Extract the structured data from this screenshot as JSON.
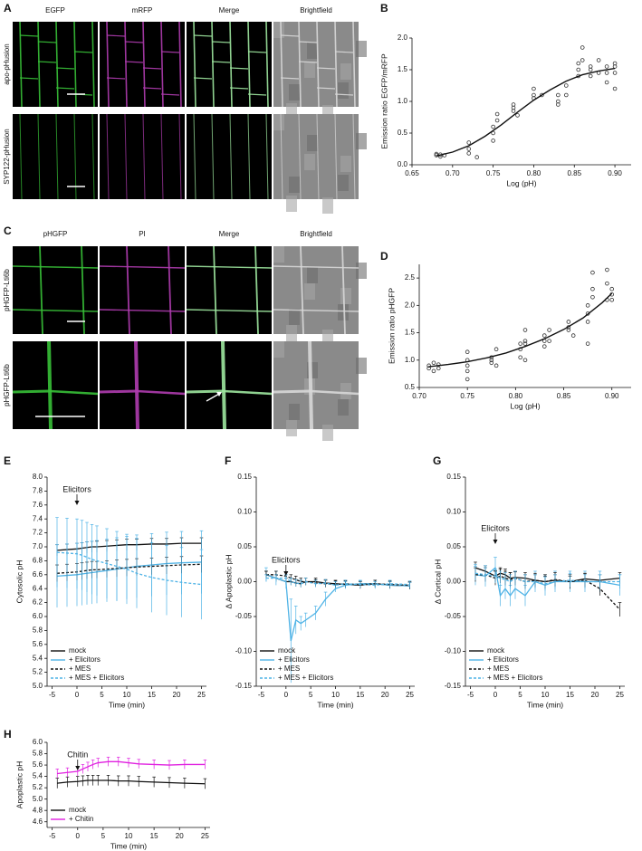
{
  "images": [
    {
      "panel": "A",
      "columns": [
        "EGFP",
        "mRFP",
        "Merge",
        "Brightfield"
      ],
      "rows": [
        "apo-pHusion",
        "SYP122-pHusion"
      ]
    },
    {
      "panel": "C",
      "columns": [
        "pHGFP",
        "PI",
        "Merge",
        "Brightfield"
      ],
      "rows": [
        "pHGFP-Lti6b",
        "pHGFP-Lti6b"
      ]
    }
  ],
  "chart_data": [
    {
      "panel": "B",
      "type": "scatter",
      "xlabel": "Log (pH)",
      "ylabel": "Emission ratio EGFP/mRFP",
      "xlim": [
        0.65,
        0.92
      ],
      "xticks": [
        0.65,
        {
          "value": 0.7,
          "label": "0.70"
        },
        0.75,
        {
          "value": 0.8,
          "label": "0.80"
        },
        0.85,
        {
          "value": 0.9,
          "label": "0.90"
        }
      ],
      "ylim": [
        0,
        2
      ],
      "yticks": [
        {
          "value": 0,
          "label": "0.0"
        },
        0.5,
        {
          "value": 1,
          "label": "1.0"
        },
        1.5,
        {
          "value": 2,
          "label": "2.0"
        }
      ],
      "series": [
        {
          "mode": "markers",
          "color": "#333333",
          "x": [
            0.68,
            0.68,
            0.685,
            0.685,
            0.69,
            0.72,
            0.72,
            0.72,
            0.73,
            0.75,
            0.75,
            0.75,
            0.755,
            0.755,
            0.775,
            0.775,
            0.775,
            0.78,
            0.8,
            0.8,
            0.8,
            0.81,
            0.83,
            0.83,
            0.83,
            0.84,
            0.84,
            0.855,
            0.855,
            0.855,
            0.86,
            0.86,
            0.87,
            0.87,
            0.87,
            0.88,
            0.88,
            0.89,
            0.89,
            0.89,
            0.9,
            0.9,
            0.9,
            0.9
          ],
          "values": [
            0.15,
            0.17,
            0.13,
            0.16,
            0.15,
            0.35,
            0.18,
            0.25,
            0.12,
            0.5,
            0.6,
            0.38,
            0.8,
            0.7,
            0.85,
            0.95,
            0.9,
            0.78,
            1.05,
            1.1,
            1.2,
            1.1,
            0.95,
            1.0,
            1.1,
            1.1,
            1.25,
            1.5,
            1.6,
            1.4,
            1.85,
            1.65,
            1.5,
            1.55,
            1.4,
            1.65,
            1.45,
            1.55,
            1.45,
            1.3,
            1.55,
            1.6,
            1.2,
            1.45
          ]
        },
        {
          "mode": "line",
          "color": "#111111",
          "x": [
            0.68,
            0.7,
            0.72,
            0.74,
            0.76,
            0.78,
            0.8,
            0.82,
            0.84,
            0.86,
            0.88,
            0.9
          ],
          "values": [
            0.14,
            0.2,
            0.3,
            0.45,
            0.63,
            0.83,
            1.02,
            1.18,
            1.32,
            1.42,
            1.48,
            1.52
          ]
        }
      ]
    },
    {
      "panel": "D",
      "type": "scatter",
      "xlabel": "Log (pH)",
      "ylabel": "Emission ratio pHGFP",
      "xlim": [
        0.7,
        0.92
      ],
      "xticks": [
        {
          "value": 0.7,
          "label": "0.70"
        },
        0.75,
        {
          "value": 0.8,
          "label": "0.80"
        },
        0.85,
        {
          "value": 0.9,
          "label": "0.90"
        }
      ],
      "ylim": [
        0.5,
        2.75
      ],
      "yticks": [
        0.5,
        {
          "value": 1,
          "label": "1.0"
        },
        1.5,
        {
          "value": 2,
          "label": "2.0"
        },
        2.5
      ],
      "series": [
        {
          "mode": "markers",
          "color": "#333333",
          "x": [
            0.71,
            0.71,
            0.715,
            0.715,
            0.72,
            0.72,
            0.75,
            0.75,
            0.75,
            0.75,
            0.75,
            0.775,
            0.775,
            0.775,
            0.78,
            0.78,
            0.805,
            0.805,
            0.805,
            0.81,
            0.81,
            0.81,
            0.81,
            0.83,
            0.83,
            0.83,
            0.835,
            0.835,
            0.855,
            0.855,
            0.855,
            0.86,
            0.875,
            0.875,
            0.875,
            0.875,
            0.88,
            0.88,
            0.88,
            0.895,
            0.895,
            0.895,
            0.9,
            0.9,
            0.9
          ],
          "values": [
            0.9,
            0.85,
            0.8,
            0.95,
            0.85,
            0.92,
            1.0,
            1.15,
            0.8,
            0.9,
            0.65,
            0.95,
            1.05,
            1.0,
            1.2,
            0.9,
            1.2,
            1.3,
            1.05,
            1.35,
            1.55,
            1.0,
            1.3,
            1.35,
            1.45,
            1.25,
            1.55,
            1.35,
            1.6,
            1.55,
            1.7,
            1.45,
            2.0,
            1.7,
            1.85,
            1.3,
            2.6,
            2.15,
            2.3,
            2.4,
            2.65,
            2.1,
            2.2,
            2.1,
            2.3
          ]
        },
        {
          "mode": "line",
          "color": "#111111",
          "x": [
            0.71,
            0.73,
            0.75,
            0.77,
            0.79,
            0.81,
            0.83,
            0.85,
            0.87,
            0.89,
            0.9
          ],
          "values": [
            0.88,
            0.92,
            0.97,
            1.04,
            1.13,
            1.25,
            1.39,
            1.56,
            1.77,
            2.05,
            2.22
          ]
        }
      ]
    },
    {
      "panel": "E",
      "type": "line",
      "xlabel": "Time (min)",
      "ylabel": "Cytosolic pH",
      "x": [
        -4,
        -2,
        0,
        1,
        2,
        3,
        4,
        6,
        8,
        10,
        12,
        15,
        18,
        21,
        25
      ],
      "xlim": [
        -6,
        26
      ],
      "xticks": [
        -5,
        0,
        5,
        10,
        15,
        20,
        25
      ],
      "ylim": [
        5,
        8
      ],
      "yticks": [
        {
          "value": 5,
          "label": "5.0"
        },
        5.2,
        5.4,
        5.6,
        5.8,
        {
          "value": 6,
          "label": "6.0"
        },
        6.2,
        6.4,
        6.6,
        6.8,
        {
          "value": 7,
          "label": "7.0"
        },
        7.2,
        7.4,
        7.6,
        7.8,
        {
          "value": 8,
          "label": "8.0"
        }
      ],
      "annotation": {
        "text": "Elicitors",
        "x": 0,
        "color": "#4fb3e6"
      },
      "legend": "lower left",
      "series": [
        {
          "name": "mock",
          "color": "#111111",
          "line_style": "solid",
          "error": 0.08,
          "values": [
            6.95,
            6.96,
            6.97,
            6.98,
            6.99,
            7.0,
            7.0,
            7.01,
            7.02,
            7.03,
            7.03,
            7.04,
            7.04,
            7.05,
            7.05
          ]
        },
        {
          "name": "+ Elicitors",
          "color": "#4fb3e6",
          "line_style": "solid",
          "error": 0.45,
          "values": [
            6.58,
            6.59,
            6.6,
            6.61,
            6.62,
            6.63,
            6.64,
            6.66,
            6.68,
            6.7,
            6.72,
            6.74,
            6.76,
            6.77,
            6.78
          ]
        },
        {
          "name": "+ MES",
          "color": "#111111",
          "line_style": "dashed",
          "error": 0.12,
          "values": [
            6.62,
            6.63,
            6.64,
            6.65,
            6.66,
            6.67,
            6.67,
            6.68,
            6.69,
            6.7,
            6.71,
            6.72,
            6.73,
            6.74,
            6.75
          ]
        },
        {
          "name": "+ MES + Elicitors",
          "color": "#4fb3e6",
          "line_style": "dashed",
          "error": 0.5,
          "values": [
            6.92,
            6.91,
            6.9,
            6.88,
            6.85,
            6.82,
            6.8,
            6.76,
            6.72,
            6.68,
            6.62,
            6.56,
            6.52,
            6.49,
            6.46
          ]
        }
      ]
    },
    {
      "panel": "F",
      "type": "line",
      "xlabel": "Time (min)",
      "ylabel": "Δ Apoplastic pH",
      "x": [
        -4,
        -2,
        0,
        1,
        2,
        3,
        4,
        6,
        8,
        10,
        12,
        15,
        18,
        21,
        25
      ],
      "xlim": [
        -6,
        26
      ],
      "xticks": [
        -5,
        0,
        5,
        10,
        15,
        20,
        25
      ],
      "ylim": [
        -0.15,
        0.15
      ],
      "yticks": [
        -0.15,
        {
          "value": -0.1,
          "label": "-0.10"
        },
        -0.05,
        {
          "value": 0,
          "label": "0.00"
        },
        0.05,
        {
          "value": 0.1,
          "label": "0.10"
        },
        0.15
      ],
      "annotation": {
        "text": "Elicitors",
        "x": 0,
        "color": "#4fb3e6"
      },
      "legend": "lower left",
      "series": [
        {
          "name": "mock",
          "color": "#111111",
          "line_style": "solid",
          "error": 0.005,
          "values": [
            0.01,
            0.005,
            0,
            0,
            -0.002,
            -0.003,
            0,
            0,
            -0.002,
            -0.003,
            -0.004,
            -0.005,
            -0.003,
            -0.005,
            -0.006
          ]
        },
        {
          "name": "+ Elicitors",
          "color": "#4fb3e6",
          "line_style": "solid",
          "error": [
            0.01,
            0.01,
            0.01,
            0.06,
            0.02,
            0.01,
            0.01,
            0.01,
            0.01,
            0.005,
            0.005,
            0.005,
            0.005,
            0.005,
            0.005
          ],
          "values": [
            0.01,
            0.005,
            0,
            -0.085,
            -0.055,
            -0.06,
            -0.055,
            -0.045,
            -0.025,
            -0.01,
            -0.005,
            -0.003,
            -0.003,
            -0.005,
            -0.006
          ]
        },
        {
          "name": "+ MES",
          "color": "#111111",
          "line_style": "dashed",
          "error": 0.005,
          "values": [
            0.01,
            0.01,
            0.008,
            0.005,
            0.003,
            0,
            0,
            -0.002,
            -0.003,
            -0.004,
            -0.003,
            -0.004,
            -0.003,
            -0.004,
            -0.005
          ]
        },
        {
          "name": "+ MES + Elicitors",
          "color": "#4fb3e6",
          "line_style": "dashed",
          "error": 0.005,
          "values": [
            0.005,
            0.005,
            0.005,
            0,
            -0.002,
            -0.003,
            0,
            -0.003,
            -0.002,
            -0.005,
            -0.003,
            -0.004,
            -0.005,
            -0.003,
            -0.004
          ]
        }
      ]
    },
    {
      "panel": "G",
      "type": "line",
      "xlabel": "Time (min)",
      "ylabel": "Δ Cortical pH",
      "x": [
        -4,
        -2,
        0,
        1,
        2,
        3,
        4,
        6,
        8,
        10,
        12,
        15,
        18,
        21,
        25
      ],
      "xlim": [
        -6,
        26
      ],
      "xticks": [
        -5,
        0,
        5,
        10,
        15,
        20,
        25
      ],
      "ylim": [
        -0.15,
        0.15
      ],
      "yticks": [
        -0.15,
        {
          "value": -0.1,
          "label": "-0.10"
        },
        -0.05,
        {
          "value": 0,
          "label": "0.00"
        },
        0.05,
        {
          "value": 0.1,
          "label": "0.10"
        },
        0.15
      ],
      "annotation": {
        "text": "Elicitors",
        "x": 0,
        "color": "#4fb3e6"
      },
      "legend": "lower left",
      "series": [
        {
          "name": "mock",
          "color": "#111111",
          "line_style": "solid",
          "error": 0.008,
          "values": [
            0.02,
            0.015,
            0.008,
            0.012,
            0.01,
            0.005,
            0.006,
            0.005,
            0.002,
            0,
            0.002,
            0,
            0.004,
            0.002,
            0.005
          ]
        },
        {
          "name": "+ Elicitors",
          "color": "#4fb3e6",
          "line_style": "solid",
          "error": 0.015,
          "values": [
            0.01,
            0.008,
            0.02,
            -0.02,
            -0.01,
            -0.02,
            -0.01,
            -0.02,
            0,
            -0.005,
            0,
            0,
            0,
            0,
            -0.005
          ]
        },
        {
          "name": "+ MES",
          "color": "#111111",
          "line_style": "dashed",
          "error": 0.01,
          "values": [
            0.01,
            0.01,
            0.005,
            0.008,
            0.005,
            0.003,
            0.005,
            0,
            0.002,
            0,
            0.003,
            0,
            0.002,
            -0.01,
            -0.04
          ]
        },
        {
          "name": "+ MES + Elicitors",
          "color": "#4fb3e6",
          "line_style": "dashed",
          "error": 0.01,
          "values": [
            0.012,
            0.01,
            0.008,
            0.005,
            0.003,
            0,
            0.005,
            0,
            0,
            -0.003,
            0,
            0.002,
            0,
            0,
            0
          ]
        }
      ]
    },
    {
      "panel": "H",
      "type": "line",
      "xlabel": "Time (min)",
      "ylabel": "Apoplastic pH",
      "x": [
        -4,
        -2,
        0,
        1,
        2,
        3,
        4,
        6,
        8,
        10,
        12,
        15,
        18,
        21,
        25
      ],
      "xlim": [
        -6,
        26
      ],
      "xticks": [
        -5,
        0,
        5,
        10,
        15,
        20,
        25
      ],
      "ylim": [
        4.5,
        6
      ],
      "yticks": [
        4.6,
        4.8,
        {
          "value": 5,
          "label": "5.0"
        },
        5.2,
        5.4,
        5.6,
        5.8,
        {
          "value": 6,
          "label": "6.0"
        }
      ],
      "annotation": {
        "text": "Chitin",
        "x": 0,
        "color": "#e020e0"
      },
      "legend": "lower left",
      "series": [
        {
          "name": "mock",
          "color": "#111111",
          "line_style": "solid",
          "error": 0.09,
          "values": [
            5.28,
            5.3,
            5.31,
            5.32,
            5.33,
            5.33,
            5.33,
            5.33,
            5.32,
            5.32,
            5.31,
            5.3,
            5.29,
            5.28,
            5.27
          ]
        },
        {
          "name": "+ Chitin",
          "color": "#e020e0",
          "line_style": "solid",
          "error": 0.08,
          "values": [
            5.45,
            5.47,
            5.49,
            5.53,
            5.57,
            5.61,
            5.64,
            5.66,
            5.66,
            5.64,
            5.62,
            5.61,
            5.6,
            5.61,
            5.61
          ]
        }
      ]
    }
  ]
}
